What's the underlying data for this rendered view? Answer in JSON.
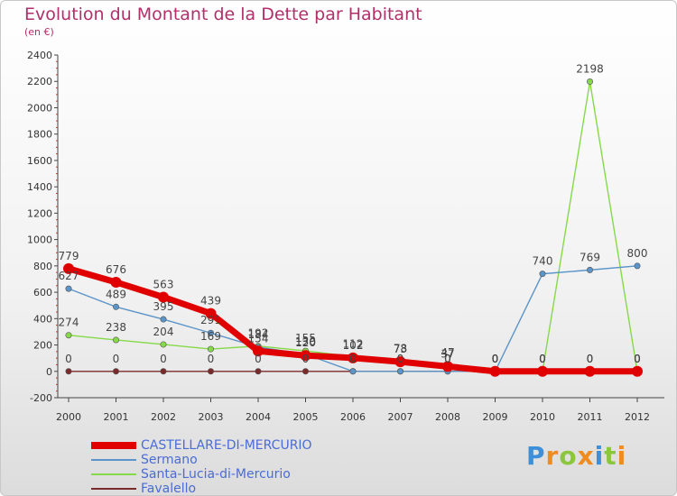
{
  "chart_data": {
    "type": "line",
    "title": "Evolution du Montant de la Dette par Habitant",
    "subtitle": "(en €)",
    "x": [
      "2000",
      "2001",
      "2002",
      "2003",
      "2004",
      "2005",
      "2006",
      "2007",
      "2008",
      "2009",
      "2010",
      "2011",
      "2012"
    ],
    "ylim": [
      -200,
      2400
    ],
    "yticks": [
      -200,
      0,
      200,
      400,
      600,
      800,
      1000,
      1200,
      1400,
      1600,
      1800,
      2000,
      2200,
      2400
    ],
    "grid": false,
    "legend_position": "bottom-left",
    "series": [
      {
        "name": "CASTELLARE-DI-MERCURIO",
        "color": "#e00000",
        "values": [
          779,
          676,
          563,
          439,
          154,
          120,
          102,
          73,
          37,
          0,
          0,
          0,
          0
        ],
        "labels": [
          "779",
          "676",
          "563",
          "439",
          "154",
          "120",
          "102",
          "73",
          "37",
          "0",
          "0",
          "0",
          "0"
        ]
      },
      {
        "name": "Sermano",
        "color": "#5b94c8",
        "values": [
          627,
          489,
          395,
          291,
          184,
          130,
          0,
          0,
          0,
          0,
          740,
          769,
          800
        ],
        "labels": [
          "627",
          "489",
          "395",
          "291",
          "184",
          "130",
          "0",
          "0",
          "0",
          "0",
          "740",
          "769",
          "800"
        ]
      },
      {
        "name": "Santa-Lucia-di-Mercurio",
        "color": "#86d948",
        "values": [
          274,
          238,
          204,
          169,
          192,
          155,
          112,
          78,
          47,
          0,
          0,
          2198,
          0
        ],
        "labels": [
          "274",
          "238",
          "204",
          "169",
          "192",
          "155",
          "112",
          "78",
          "47",
          "0",
          "0",
          "2198",
          "0"
        ]
      },
      {
        "name": "Favalello",
        "color": "#7a2a2a",
        "values": [
          0,
          0,
          0,
          0,
          0,
          0,
          0,
          0,
          0,
          0,
          0,
          0,
          0
        ],
        "labels": [
          "0",
          "0",
          "0",
          "0",
          "0",
          "0",
          "0",
          "0",
          "0",
          "0",
          "0",
          "0",
          "0"
        ]
      }
    ]
  },
  "logo": {
    "letters": [
      {
        "ch": "P",
        "color": "#3c8fd8"
      },
      {
        "ch": "r",
        "color": "#f08c1e"
      },
      {
        "ch": "o",
        "color": "#8cc63f"
      },
      {
        "ch": "x",
        "color": "#f08c1e"
      },
      {
        "ch": "i",
        "color": "#3c8fd8"
      },
      {
        "ch": "t",
        "color": "#8cc63f"
      },
      {
        "ch": "i",
        "color": "#f08c1e"
      }
    ]
  }
}
